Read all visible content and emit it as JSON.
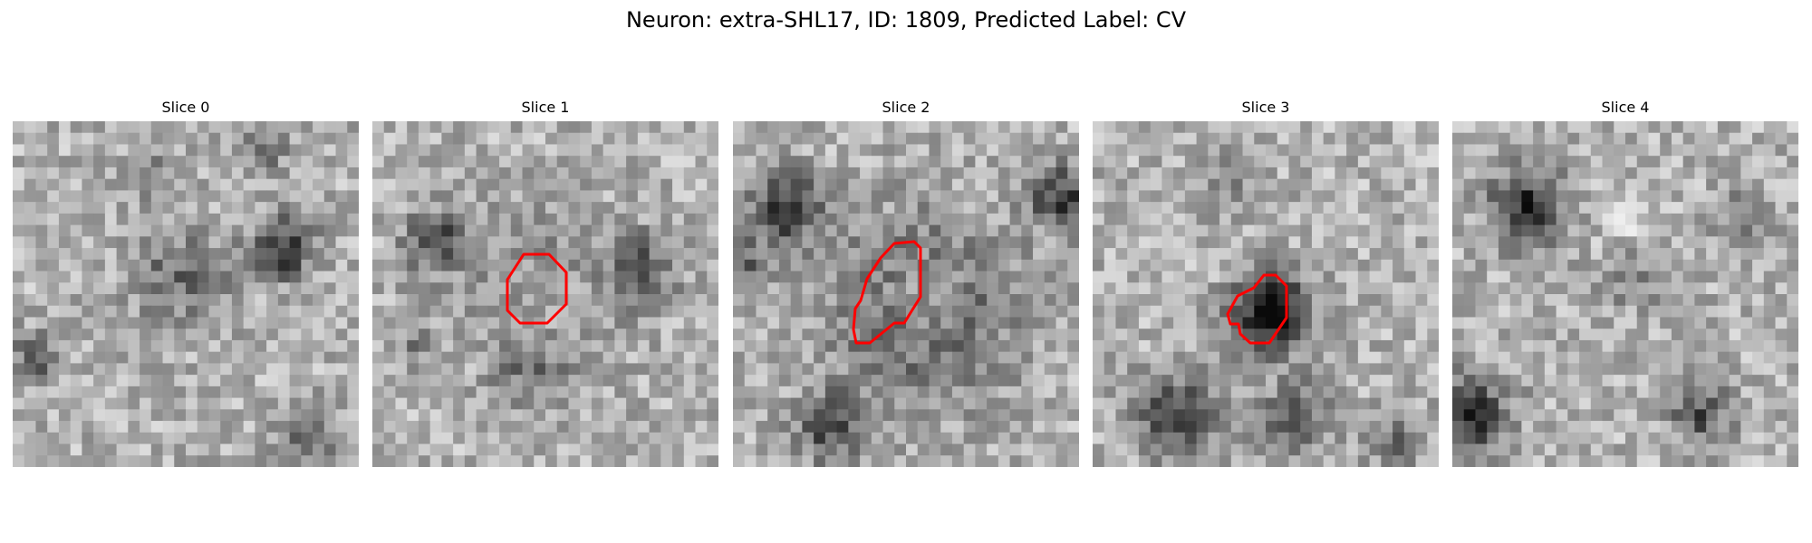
{
  "figure": {
    "title": "Neuron: extra-SHL17, ID: 1809, Predicted Label: CV"
  },
  "colors": {
    "contour": "#ff0000",
    "colormap": "gray"
  },
  "panels": [
    {
      "title": "Slice 0",
      "has_contour": false
    },
    {
      "title": "Slice 1",
      "has_contour": true
    },
    {
      "title": "Slice 2",
      "has_contour": true
    },
    {
      "title": "Slice 3",
      "has_contour": true
    },
    {
      "title": "Slice 4",
      "has_contour": false
    }
  ]
}
